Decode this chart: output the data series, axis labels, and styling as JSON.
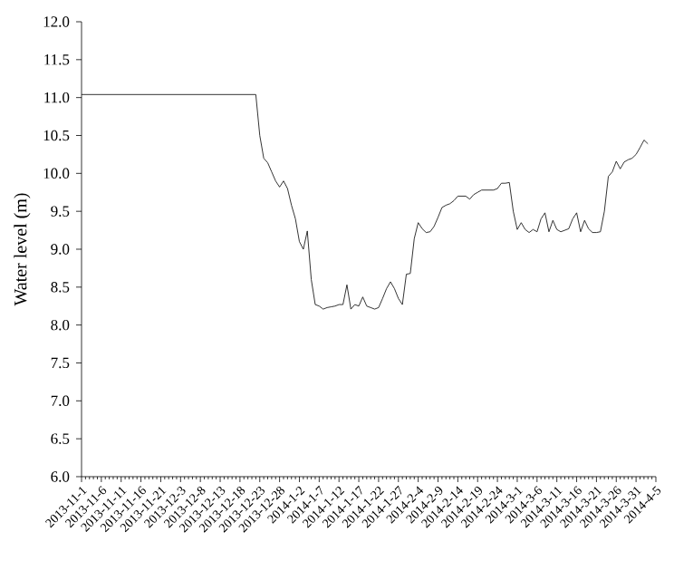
{
  "chart_data": {
    "type": "line",
    "ylabel": "Water level (m)",
    "categories": [
      "2013-11-1",
      null,
      null,
      null,
      null,
      "2013-11-6",
      null,
      null,
      null,
      null,
      "2013-11-11",
      null,
      null,
      null,
      null,
      "2013-11-16",
      null,
      null,
      null,
      null,
      "2013-11-21",
      null,
      null,
      null,
      null,
      "2013-12-3",
      null,
      null,
      null,
      null,
      "2013-12-8",
      null,
      null,
      null,
      null,
      "2013-12-13",
      null,
      null,
      null,
      null,
      "2013-12-18",
      null,
      null,
      null,
      null,
      "2013-12-23",
      null,
      null,
      null,
      null,
      "2013-12-28",
      null,
      null,
      null,
      null,
      "2014-1-2",
      null,
      null,
      null,
      null,
      "2014-1-7",
      null,
      null,
      null,
      null,
      "2014-1-12",
      null,
      null,
      null,
      null,
      "2014-1-17",
      null,
      null,
      null,
      null,
      "2014-1-22",
      null,
      null,
      null,
      null,
      "2014-1-27",
      null,
      null,
      null,
      null,
      "2014-2-4",
      null,
      null,
      null,
      null,
      "2014-2-9",
      null,
      null,
      null,
      null,
      "2014-2-14",
      null,
      null,
      null,
      null,
      "2014-2-19",
      null,
      null,
      null,
      null,
      "2014-2-24",
      null,
      null,
      null,
      null,
      "2014-3-1",
      null,
      null,
      null,
      null,
      "2014-3-6",
      null,
      null,
      null,
      null,
      "2014-3-11",
      null,
      null,
      null,
      null,
      "2014-3-16",
      null,
      null,
      null,
      null,
      "2014-3-21",
      null,
      null,
      null,
      null,
      "2014-3-26",
      null,
      null,
      null,
      null,
      "2014-3-31",
      null,
      null,
      null,
      null,
      "2014-4-5"
    ],
    "values": [
      11.04,
      11.04,
      11.04,
      11.04,
      11.04,
      11.04,
      11.04,
      11.04,
      11.04,
      11.04,
      11.04,
      11.04,
      11.04,
      11.04,
      11.04,
      11.04,
      11.04,
      11.04,
      11.04,
      11.04,
      11.04,
      11.04,
      11.04,
      11.04,
      11.04,
      11.04,
      11.04,
      11.04,
      11.04,
      11.04,
      11.04,
      11.04,
      11.04,
      11.04,
      11.04,
      11.04,
      11.04,
      11.04,
      11.04,
      11.04,
      11.04,
      11.04,
      11.04,
      11.04,
      11.04,
      10.5,
      10.2,
      10.14,
      10.02,
      9.9,
      9.82,
      9.9,
      9.8,
      9.58,
      9.4,
      9.1,
      9.0,
      9.24,
      8.6,
      8.27,
      8.25,
      8.21,
      8.23,
      8.24,
      8.25,
      8.27,
      8.27,
      8.53,
      8.21,
      8.27,
      8.25,
      8.37,
      8.25,
      8.23,
      8.21,
      8.23,
      8.35,
      8.48,
      8.57,
      8.48,
      8.35,
      8.27,
      8.67,
      8.68,
      9.14,
      9.35,
      9.27,
      9.22,
      9.23,
      9.3,
      9.42,
      9.55,
      9.58,
      9.6,
      9.64,
      9.7,
      9.7,
      9.7,
      9.66,
      9.72,
      9.75,
      9.78,
      9.78,
      9.78,
      9.78,
      9.8,
      9.87,
      9.87,
      9.88,
      9.5,
      9.26,
      9.35,
      9.26,
      9.22,
      9.26,
      9.23,
      9.4,
      9.48,
      9.23,
      9.38,
      9.26,
      9.23,
      9.25,
      9.27,
      9.4,
      9.48,
      9.23,
      9.38,
      9.27,
      9.22,
      9.22,
      9.23,
      9.5,
      9.96,
      10.02,
      10.16,
      10.06,
      10.15,
      10.18,
      10.2,
      10.25,
      10.34,
      10.44,
      10.39,
      null,
      null
    ],
    "color": "#000000",
    "ylim": [
      6,
      12
    ],
    "yticks": [
      {
        "value": 6,
        "label": "6.0"
      },
      {
        "value": 6.5,
        "label": "6.5"
      },
      {
        "value": 7,
        "label": "7.0"
      },
      {
        "value": 7.5,
        "label": "7.5"
      },
      {
        "value": 8,
        "label": "8.0"
      },
      {
        "value": 8.5,
        "label": "8.5"
      },
      {
        "value": 9,
        "label": "9.0"
      },
      {
        "value": 9.5,
        "label": "9.5"
      },
      {
        "value": 10,
        "label": "10.0"
      },
      {
        "value": 10.5,
        "label": "10.5"
      },
      {
        "value": 11,
        "label": "11.0"
      },
      {
        "value": 11.5,
        "label": "11.5"
      },
      {
        "value": 12,
        "label": "12.0"
      }
    ],
    "grid": false,
    "marker": "none",
    "line_style": "solid"
  }
}
